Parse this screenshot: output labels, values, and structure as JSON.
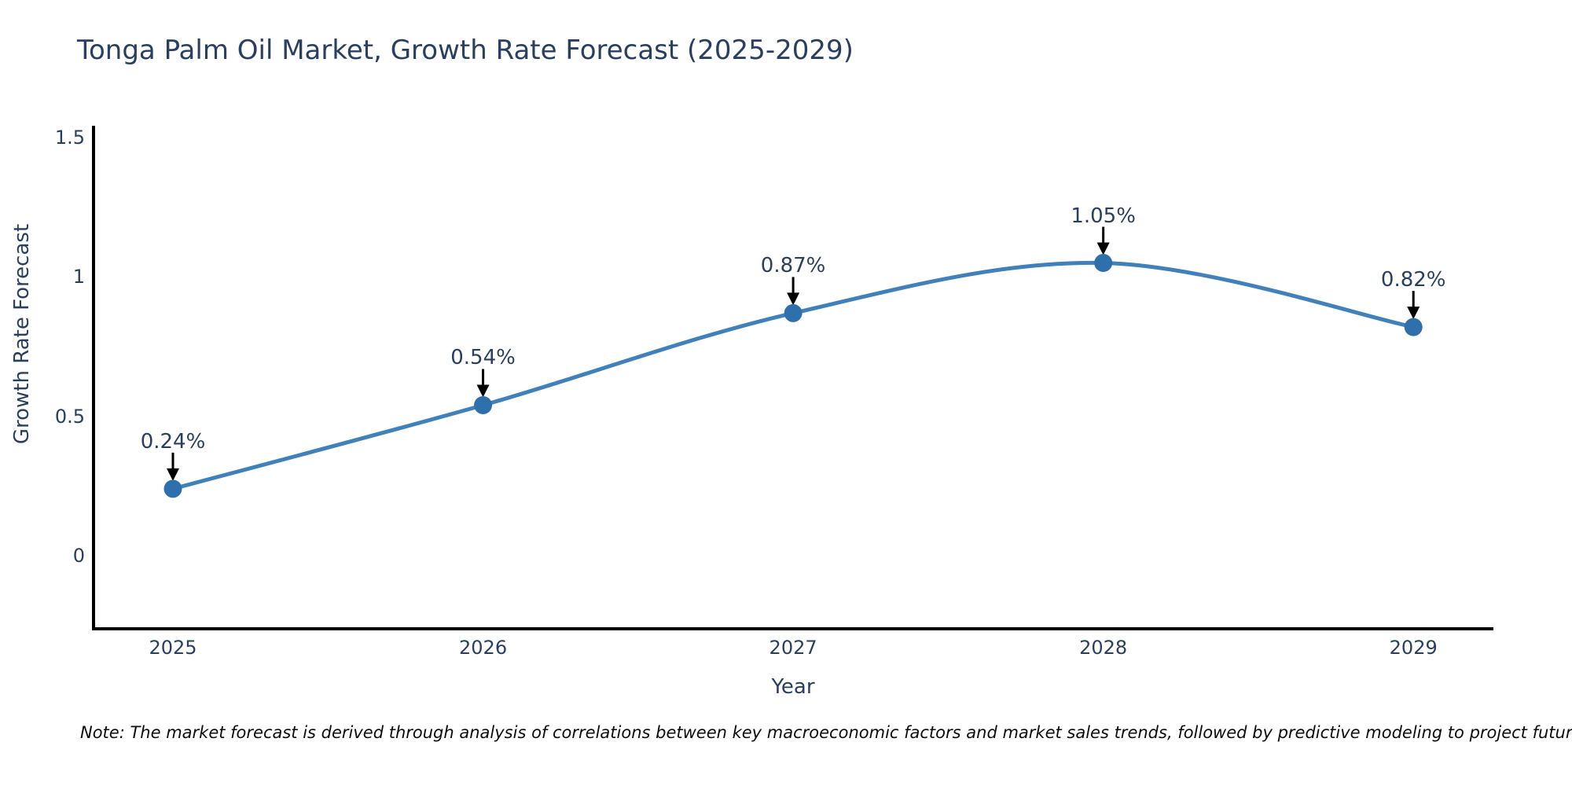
{
  "title": "Tonga Palm Oil Market, Growth Rate Forecast (2025-2029)",
  "note": "Note: The market forecast is derived through analysis of correlations between key macroeconomic factors and market sales trends, followed by predictive modeling to project future sales",
  "chart_data": {
    "type": "line",
    "title": "Tonga Palm Oil Market, Growth Rate Forecast (2025-2029)",
    "xlabel": "Year",
    "ylabel": "Growth Rate Forecast",
    "x": [
      2025,
      2026,
      2027,
      2028,
      2029
    ],
    "values": [
      0.24,
      0.54,
      0.87,
      1.05,
      0.82
    ],
    "point_labels": [
      "0.24%",
      "0.54%",
      "0.87%",
      "1.05%",
      "0.82%"
    ],
    "xtick_labels": [
      "2025",
      "2026",
      "2027",
      "2028",
      "2029"
    ],
    "yticks": [
      0,
      0.5,
      1,
      1.5
    ],
    "ytick_labels": [
      "0",
      "0.5",
      "1",
      "1.5"
    ],
    "xlim": [
      2024.744,
      2029.258
    ],
    "ylim": [
      -0.262,
      1.542
    ],
    "grid": false,
    "line_shape": "spline",
    "legend": "none",
    "colors": {
      "line": "#4080bb",
      "marker": "#2e6fac",
      "arrow": "#000000",
      "axis": "#000000",
      "text": "#2a3f5f"
    }
  }
}
